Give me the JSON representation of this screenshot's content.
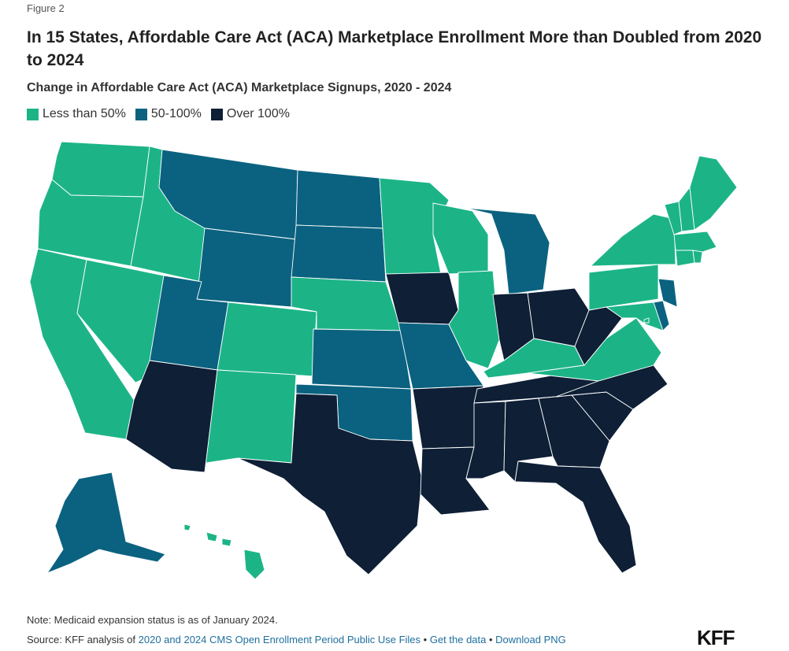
{
  "figure_label": "Figure 2",
  "title": "In 15 States, Affordable Care Act (ACA) Marketplace Enrollment More than Doubled from 2020 to 2024",
  "subtitle": "Change in Affordable Care Act (ACA) Marketplace Signups, 2020 - 2024",
  "legend": [
    {
      "label": "Less than 50%",
      "color": "#1cb487"
    },
    {
      "label": "50-100%",
      "color": "#0a6280"
    },
    {
      "label": "Over 100%",
      "color": "#0e1f36"
    }
  ],
  "colors": {
    "low": "#1cb487",
    "mid": "#0a6280",
    "high": "#0e1f36",
    "link": "#1f6f9e"
  },
  "chart_data": {
    "type": "choropleth",
    "categories": [
      "Less than 50%",
      "50-100%",
      "Over 100%"
    ],
    "states": {
      "Washington": "Less than 50%",
      "Oregon": "Less than 50%",
      "California": "Less than 50%",
      "Idaho": "Less than 50%",
      "Nevada": "Less than 50%",
      "Colorado": "Less than 50%",
      "New Mexico": "Less than 50%",
      "Nebraska": "Less than 50%",
      "Minnesota": "Less than 50%",
      "Wisconsin": "Less than 50%",
      "Illinois": "Less than 50%",
      "Kentucky": "Less than 50%",
      "Virginia": "Less than 50%",
      "Pennsylvania": "Less than 50%",
      "New York": "Less than 50%",
      "Vermont": "Less than 50%",
      "New Hampshire": "Less than 50%",
      "Maine": "Less than 50%",
      "Massachusetts": "Less than 50%",
      "Rhode Island": "Less than 50%",
      "Connecticut": "Less than 50%",
      "Maryland": "Less than 50%",
      "District of Columbia": "Less than 50%",
      "Hawaii": "Less than 50%",
      "Montana": "50-100%",
      "Wyoming": "50-100%",
      "Utah": "50-100%",
      "North Dakota": "50-100%",
      "South Dakota": "50-100%",
      "Kansas": "50-100%",
      "Oklahoma": "50-100%",
      "Missouri": "50-100%",
      "Michigan": "50-100%",
      "New Jersey": "50-100%",
      "Delaware": "50-100%",
      "Alaska": "50-100%",
      "Arizona": "Over 100%",
      "Texas": "Over 100%",
      "Iowa": "Over 100%",
      "Arkansas": "Over 100%",
      "Louisiana": "Over 100%",
      "Mississippi": "Over 100%",
      "Alabama": "Over 100%",
      "Georgia": "Over 100%",
      "Florida": "Over 100%",
      "South Carolina": "Over 100%",
      "North Carolina": "Over 100%",
      "Tennessee": "Over 100%",
      "Indiana": "Over 100%",
      "Ohio": "Over 100%",
      "West Virginia": "Over 100%"
    }
  },
  "note": "Note: Medicaid expansion status is as of January 2024.",
  "source": {
    "prefix": "Source: KFF analysis of ",
    "link_text": "2020 and 2024 CMS Open Enrollment Period Public Use Files",
    "sep1": " • ",
    "get_data": "Get the data",
    "sep2": " • ",
    "download": "Download PNG"
  },
  "logo": "KFF"
}
